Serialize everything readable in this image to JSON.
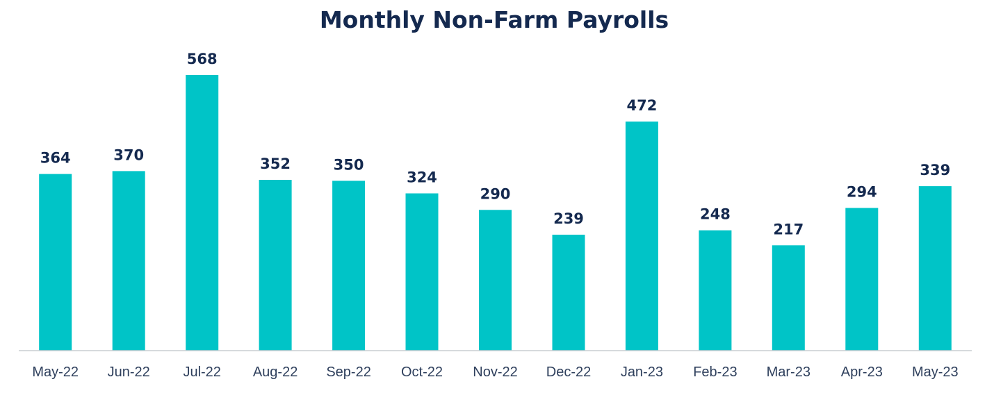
{
  "colors": {
    "bar": "#00C4C7",
    "title": "#14294F",
    "value_label": "#14294F",
    "tick_label": "#2E3F5C",
    "axis": "#C9CDD2"
  },
  "chart_data": {
    "type": "bar",
    "title": "Monthly Non-Farm Payrolls",
    "xlabel": "",
    "ylabel": "",
    "categories": [
      "May-22",
      "Jun-22",
      "Jul-22",
      "Aug-22",
      "Sep-22",
      "Oct-22",
      "Nov-22",
      "Dec-22",
      "Jan-23",
      "Feb-23",
      "Mar-23",
      "Apr-23",
      "May-23"
    ],
    "values": [
      364,
      370,
      568,
      352,
      350,
      324,
      290,
      239,
      472,
      248,
      217,
      294,
      339
    ],
    "ylim": [
      0,
      568
    ],
    "grid": false,
    "legend": false,
    "data_labels": true
  }
}
